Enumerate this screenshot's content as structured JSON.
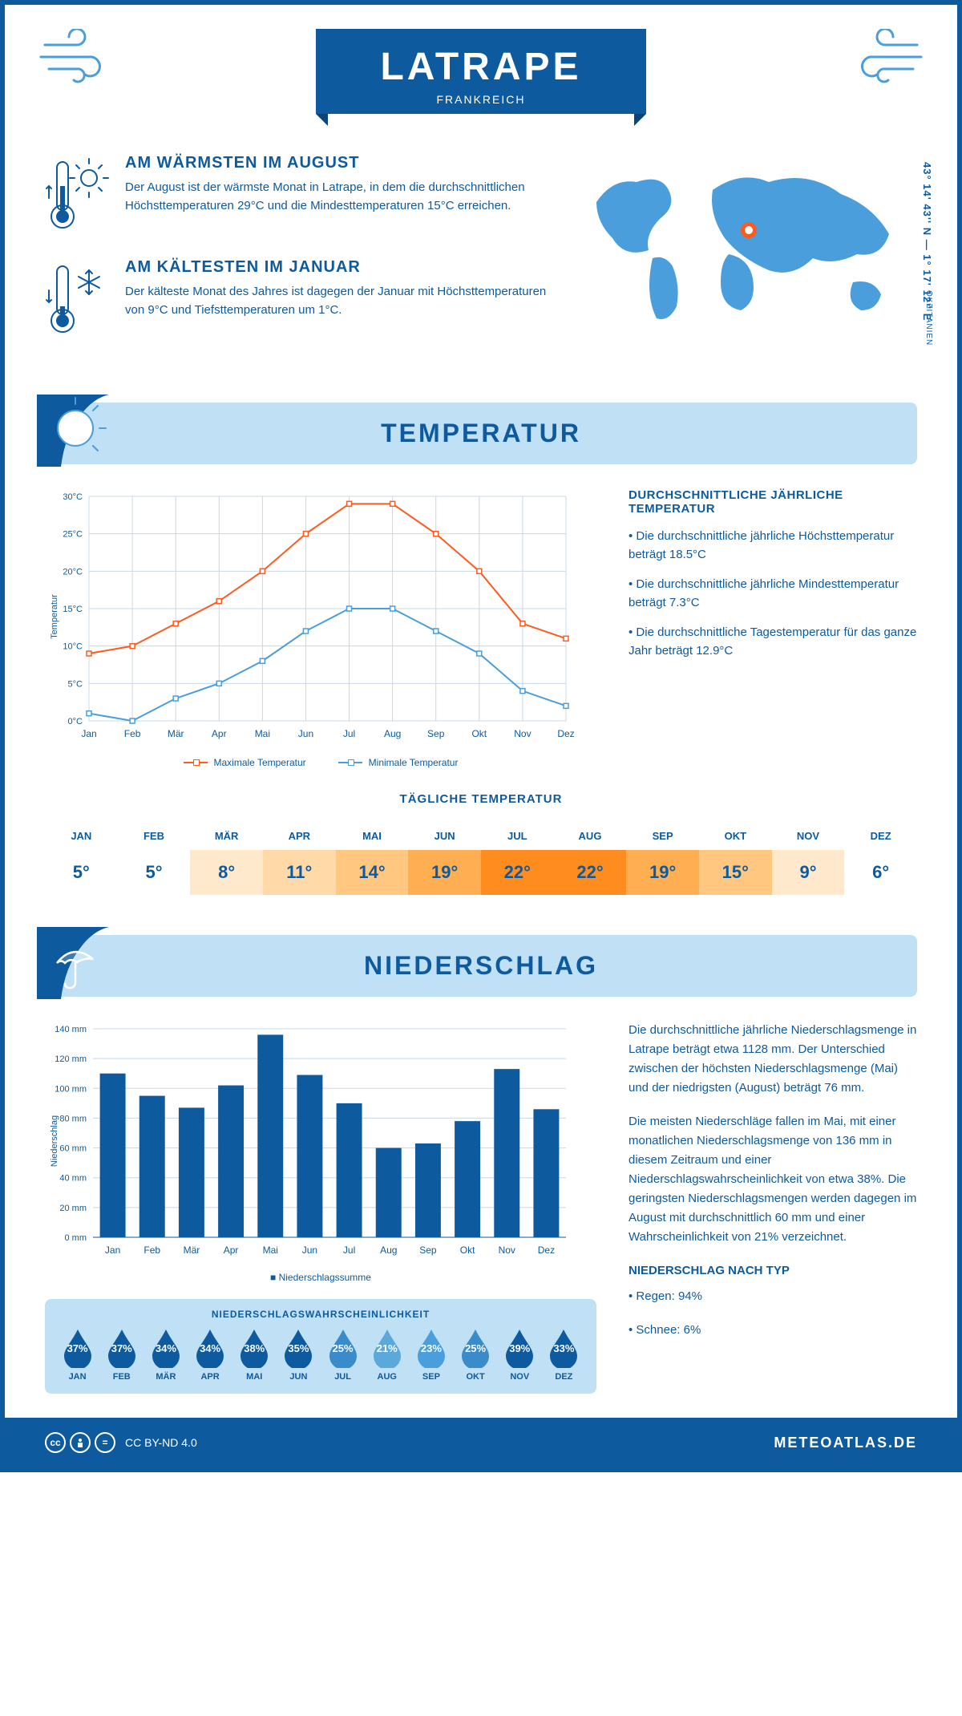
{
  "header": {
    "title": "LATRAPE",
    "subtitle": "FRANKREICH"
  },
  "location": {
    "coords": "43° 14' 43'' N — 1° 17' 12'' E",
    "region": "OKZITANIEN"
  },
  "warmest": {
    "title": "AM WÄRMSTEN IM AUGUST",
    "text": "Der August ist der wärmste Monat in Latrape, in dem die durchschnittlichen Höchsttemperaturen 29°C und die Mindesttemperaturen 15°C erreichen."
  },
  "coldest": {
    "title": "AM KÄLTESTEN IM JANUAR",
    "text": "Der kälteste Monat des Jahres ist dagegen der Januar mit Höchsttemperaturen von 9°C und Tiefsttemperaturen um 1°C."
  },
  "temp_section": {
    "heading": "TEMPERATUR",
    "chart": {
      "type": "line",
      "months": [
        "Jan",
        "Feb",
        "Mär",
        "Apr",
        "Mai",
        "Jun",
        "Jul",
        "Aug",
        "Sep",
        "Okt",
        "Nov",
        "Dez"
      ],
      "max_values": [
        9,
        10,
        13,
        16,
        20,
        25,
        29,
        29,
        25,
        20,
        13,
        11
      ],
      "min_values": [
        1,
        0,
        3,
        5,
        8,
        12,
        15,
        15,
        12,
        9,
        4,
        2
      ],
      "max_color": "#ff5a1f",
      "min_color": "#4a9edb",
      "y_label": "Temperatur",
      "ylim": [
        0,
        30
      ],
      "ytick_step": 5,
      "ytick_labels": [
        "0°C",
        "5°C",
        "10°C",
        "15°C",
        "20°C",
        "25°C",
        "30°C"
      ],
      "grid_color": "#c8d8e8",
      "background": "#ffffff",
      "marker_style": "square",
      "line_width": 2,
      "legend_max": "Maximale Temperatur",
      "legend_min": "Minimale Temperatur"
    },
    "info_title": "DURCHSCHNITTLICHE JÄHRLICHE TEMPERATUR",
    "info_lines": [
      "• Die durchschnittliche jährliche Höchsttemperatur beträgt 18.5°C",
      "• Die durchschnittliche jährliche Mindesttemperatur beträgt 7.3°C",
      "• Die durchschnittliche Tagestemperatur für das ganze Jahr beträgt 12.9°C"
    ]
  },
  "daily_temp": {
    "title": "TÄGLICHE TEMPERATUR",
    "months": [
      "JAN",
      "FEB",
      "MÄR",
      "APR",
      "MAI",
      "JUN",
      "JUL",
      "AUG",
      "SEP",
      "OKT",
      "NOV",
      "DEZ"
    ],
    "values": [
      "5°",
      "5°",
      "8°",
      "11°",
      "14°",
      "19°",
      "22°",
      "22°",
      "19°",
      "15°",
      "9°",
      "6°"
    ],
    "cell_colors": [
      "#ffffff",
      "#ffffff",
      "#ffe9cc",
      "#ffd9a8",
      "#ffc77f",
      "#ffae52",
      "#ff8c1f",
      "#ff8c1f",
      "#ffae52",
      "#ffc77f",
      "#ffe9cc",
      "#ffffff"
    ]
  },
  "precip_section": {
    "heading": "NIEDERSCHLAG",
    "chart": {
      "type": "bar",
      "months": [
        "Jan",
        "Feb",
        "Mär",
        "Apr",
        "Mai",
        "Jun",
        "Jul",
        "Aug",
        "Sep",
        "Okt",
        "Nov",
        "Dez"
      ],
      "values": [
        110,
        95,
        87,
        102,
        136,
        109,
        90,
        60,
        63,
        78,
        113,
        86
      ],
      "bar_color": "#0d5a9e",
      "y_label": "Niederschlag",
      "ylim": [
        0,
        140
      ],
      "ytick_step": 20,
      "ytick_labels": [
        "0 mm",
        "20 mm",
        "40 mm",
        "60 mm",
        "80 mm",
        "100 mm",
        "120 mm",
        "140 mm"
      ],
      "grid_color": "#c8d8e8",
      "bar_width": 0.65,
      "legend": "Niederschlagssumme"
    },
    "text1": "Die durchschnittliche jährliche Niederschlagsmenge in Latrape beträgt etwa 1128 mm. Der Unterschied zwischen der höchsten Niederschlagsmenge (Mai) und der niedrigsten (August) beträgt 76 mm.",
    "text2": "Die meisten Niederschläge fallen im Mai, mit einer monatlichen Niederschlagsmenge von 136 mm in diesem Zeitraum und einer Niederschlagswahrscheinlichkeit von etwa 38%. Die geringsten Niederschlagsmengen werden dagegen im August mit durchschnittlich 60 mm und einer Wahrscheinlichkeit von 21% verzeichnet.",
    "by_type_title": "NIEDERSCHLAG NACH TYP",
    "by_type_lines": [
      "• Regen: 94%",
      "• Schnee: 6%"
    ]
  },
  "prob": {
    "title": "NIEDERSCHLAGSWAHRSCHEINLICHKEIT",
    "months": [
      "JAN",
      "FEB",
      "MÄR",
      "APR",
      "MAI",
      "JUN",
      "JUL",
      "AUG",
      "SEP",
      "OKT",
      "NOV",
      "DEZ"
    ],
    "values": [
      "37%",
      "37%",
      "34%",
      "34%",
      "38%",
      "35%",
      "25%",
      "21%",
      "23%",
      "25%",
      "39%",
      "33%"
    ],
    "drop_colors": [
      "#0d5a9e",
      "#0d5a9e",
      "#0d5a9e",
      "#0d5a9e",
      "#0d5a9e",
      "#0d5a9e",
      "#3a8bc9",
      "#5ba8db",
      "#4a9edb",
      "#3a8bc9",
      "#0d5a9e",
      "#0d5a9e"
    ]
  },
  "footer": {
    "license": "CC BY-ND 4.0",
    "site": "METEOATLAS.DE"
  },
  "colors": {
    "primary": "#0d5a9e",
    "light_blue": "#4a9edb",
    "panel": "#bfe0f5",
    "orange": "#ff5a1f"
  }
}
